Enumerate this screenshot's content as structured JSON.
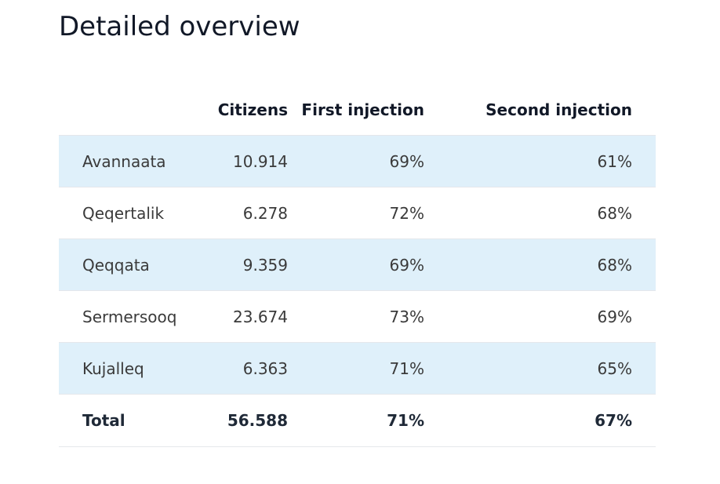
{
  "page": {
    "title": "Detailed overview"
  },
  "table": {
    "columns": [
      "",
      "Citizens",
      "First injection",
      "Second injection"
    ],
    "rows": [
      {
        "region": "Avannaata",
        "citizens": "10.914",
        "first": "69%",
        "second": "61%"
      },
      {
        "region": "Qeqertalik",
        "citizens": "6.278",
        "first": "72%",
        "second": "68%"
      },
      {
        "region": "Qeqqata",
        "citizens": "9.359",
        "first": "69%",
        "second": "68%"
      },
      {
        "region": "Sermersooq",
        "citizens": "23.674",
        "first": "73%",
        "second": "69%"
      },
      {
        "region": "Kujalleq",
        "citizens": "6.363",
        "first": "71%",
        "second": "65%"
      }
    ],
    "total": {
      "region": "Total",
      "citizens": "56.588",
      "first": "71%",
      "second": "67%"
    },
    "row_highlight_color": "#dff0fa"
  }
}
